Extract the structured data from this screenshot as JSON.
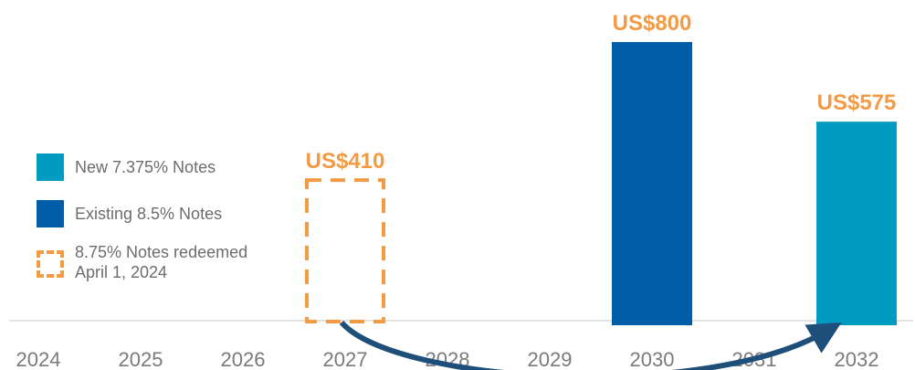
{
  "chart_data": {
    "type": "bar",
    "categories": [
      "2024",
      "2025",
      "2026",
      "2027",
      "2028",
      "2029",
      "2030",
      "2031",
      "2032"
    ],
    "series": [
      {
        "name": "New 7.375% Notes",
        "values": [
          null,
          null,
          null,
          null,
          null,
          null,
          null,
          null,
          575
        ],
        "color": "#009bc0",
        "style": "solid"
      },
      {
        "name": "Existing 8.5% Notes",
        "values": [
          null,
          null,
          null,
          null,
          null,
          null,
          800,
          null,
          null
        ],
        "color": "#005ea8",
        "style": "solid"
      },
      {
        "name": "8.75% Notes redeemed April 1, 2024",
        "values": [
          null,
          null,
          null,
          410,
          null,
          null,
          null,
          null,
          null
        ],
        "color": "#f39a45",
        "style": "dashed"
      }
    ],
    "data_labels": {
      "2027": "US$410",
      "2030": "US$800",
      "2032": "US$575"
    },
    "label_color": "#f39a45",
    "ylim": [
      0,
      800
    ],
    "grid": false,
    "legend_position": "left",
    "arrows": [
      "2027 to 2032"
    ],
    "arrow_color": "#1e4f7a",
    "axis_tick_color": "#7a7a7a"
  },
  "legend": [
    {
      "lines": [
        "New 7.375% Notes"
      ],
      "color": "#009bc0",
      "dashed": false
    },
    {
      "lines": [
        "Existing 8.5% Notes"
      ],
      "color": "#005ea8",
      "dashed": false
    },
    {
      "lines": [
        "8.75% Notes redeemed",
        "April 1, 2024"
      ],
      "color": "#f39a45",
      "dashed": true
    }
  ]
}
